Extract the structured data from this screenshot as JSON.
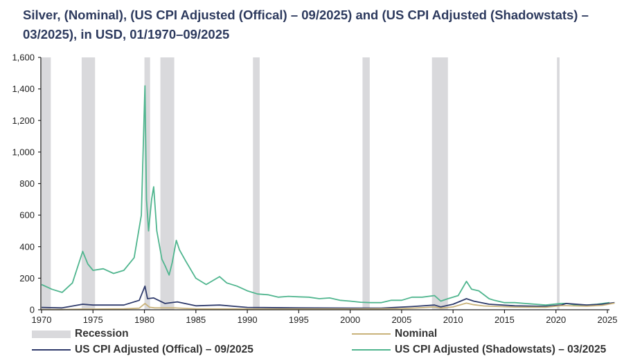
{
  "chart_data": {
    "type": "line",
    "title": "Silver, (Nominal), (US CPI Adjusted (Offical) – 09/2025) and (US CPI Adjusted (Shadowstats) – 03/2025), in USD, 01/1970–09/2025",
    "xlabel": "",
    "ylabel": "",
    "xlim": [
      1970,
      2025.9
    ],
    "ylim": [
      0,
      1600
    ],
    "x_ticks": [
      "1970",
      "1975",
      "1980",
      "1985",
      "1990",
      "1995",
      "2000",
      "2005",
      "2010",
      "2015",
      "2020",
      "2025"
    ],
    "y_ticks": [
      "0",
      "200",
      "400",
      "600",
      "800",
      "1,000",
      "1,200",
      "1,400",
      "1,600"
    ],
    "grid": false,
    "legend_placement": "bottom",
    "recessions": [
      [
        1970.0,
        1970.9
      ],
      [
        1973.9,
        1975.2
      ],
      [
        1980.0,
        1980.55
      ],
      [
        1981.55,
        1982.9
      ],
      [
        1990.55,
        1991.2
      ],
      [
        2001.2,
        2001.9
      ],
      [
        2007.95,
        2009.5
      ],
      [
        2020.1,
        2020.35
      ]
    ],
    "legend": {
      "recession": "Recession"
    },
    "series": [
      {
        "name": "Nominal",
        "color": "#c9b27a",
        "x": [
          1970,
          1972,
          1974,
          1975,
          1978,
          1979.5,
          1980.05,
          1980.5,
          1981,
          1983,
          1985,
          1990,
          1995,
          2000,
          2005,
          2007,
          2008.2,
          2008.8,
          2010,
          2011.3,
          2012,
          2013,
          2016,
          2019,
          2020.5,
          2021,
          2023,
          2024.5,
          2025.7
        ],
        "y": [
          1.8,
          1.5,
          4.5,
          4.4,
          5.5,
          10,
          40,
          16,
          12,
          12,
          6,
          5,
          5,
          5,
          7,
          13,
          18,
          10,
          18,
          42,
          32,
          24,
          17,
          16,
          26,
          26,
          23,
          28,
          42
        ]
      },
      {
        "name": "US CPI Adjusted (Offical) – 09/2025",
        "color": "#2e3a6b",
        "x": [
          1970,
          1972,
          1974,
          1975,
          1978,
          1979.5,
          1980.05,
          1980.3,
          1980.9,
          1982,
          1983.2,
          1985,
          1987.3,
          1990,
          1995,
          2000,
          2003,
          2006,
          2008.2,
          2008.8,
          2010,
          2011.3,
          2012,
          2013.5,
          2016,
          2019,
          2020.5,
          2021,
          2023,
          2024.5,
          2025.7
        ],
        "y": [
          15,
          12,
          35,
          30,
          30,
          60,
          150,
          70,
          75,
          40,
          50,
          25,
          30,
          15,
          12,
          10,
          10,
          20,
          30,
          18,
          35,
          70,
          55,
          35,
          25,
          22,
          30,
          40,
          30,
          35,
          45
        ]
      },
      {
        "name": "US CPI Adjusted (Shadowstats) – 03/2025",
        "color": "#4fb58e",
        "x": [
          1970,
          1971,
          1972,
          1973,
          1974.0,
          1974.5,
          1975,
          1976,
          1977,
          1978,
          1979,
          1979.7,
          1980.05,
          1980.2,
          1980.4,
          1980.7,
          1980.9,
          1981.2,
          1981.7,
          1982.0,
          1982.4,
          1982.7,
          1983.1,
          1983.4,
          1984,
          1985,
          1986,
          1987.3,
          1988,
          1989,
          1990,
          1991,
          1992,
          1993,
          1994,
          1995,
          1996,
          1997,
          1998,
          1999,
          2000,
          2001,
          2002,
          2003,
          2004,
          2005,
          2006,
          2007,
          2008.2,
          2008.8,
          2009.5,
          2010.5,
          2011.3,
          2011.8,
          2012.5,
          2013.5,
          2014,
          2015,
          2016,
          2017,
          2018,
          2019,
          2020.5,
          2021,
          2022,
          2023,
          2024,
          2025.2
        ],
        "y": [
          160,
          130,
          110,
          170,
          370,
          290,
          250,
          260,
          230,
          250,
          330,
          600,
          1420,
          700,
          500,
          700,
          780,
          500,
          320,
          280,
          220,
          300,
          440,
          380,
          310,
          200,
          160,
          210,
          170,
          150,
          120,
          100,
          95,
          80,
          85,
          82,
          80,
          70,
          75,
          60,
          55,
          48,
          45,
          45,
          60,
          60,
          80,
          80,
          90,
          55,
          70,
          90,
          180,
          130,
          120,
          70,
          60,
          45,
          45,
          40,
          35,
          30,
          40,
          40,
          30,
          30,
          35,
          45
        ]
      }
    ]
  }
}
